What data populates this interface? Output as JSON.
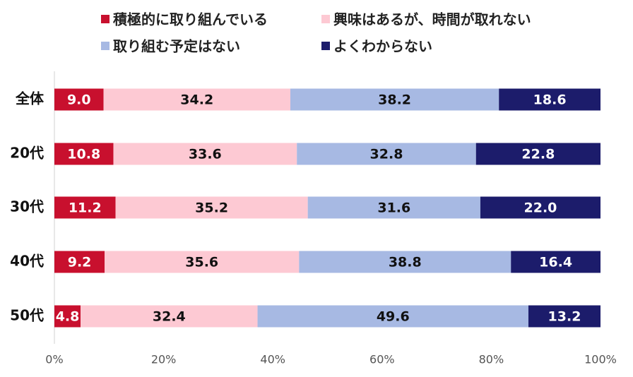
{
  "chart_data": {
    "type": "bar",
    "orientation": "horizontal",
    "stacked": "percent",
    "title": "",
    "categories": [
      "全体",
      "20代",
      "30代",
      "40代",
      "50代"
    ],
    "series": [
      {
        "name": "積極的に取り組んでいる",
        "color": "#c8102e",
        "label_color": "#ffffff",
        "values": [
          9.0,
          10.8,
          11.2,
          9.2,
          4.8
        ]
      },
      {
        "name": "興味はあるが、時間が取れない",
        "color": "#fdc9d3",
        "label_color": "#111111",
        "values": [
          34.2,
          33.6,
          35.2,
          35.6,
          32.4
        ]
      },
      {
        "name": "取り組む予定はない",
        "color": "#a7b9e3",
        "label_color": "#111111",
        "values": [
          38.2,
          32.8,
          31.6,
          38.8,
          49.6
        ]
      },
      {
        "name": "よくわからない",
        "color": "#1c1c6b",
        "label_color": "#ffffff",
        "values": [
          18.6,
          22.8,
          22.0,
          16.4,
          13.2
        ]
      }
    ],
    "xlim": [
      0,
      100
    ],
    "xticks": [
      "0%",
      "20%",
      "40%",
      "60%",
      "80%",
      "100%"
    ],
    "xlabel": "",
    "ylabel": "",
    "grid": false,
    "legend_position": "top"
  }
}
